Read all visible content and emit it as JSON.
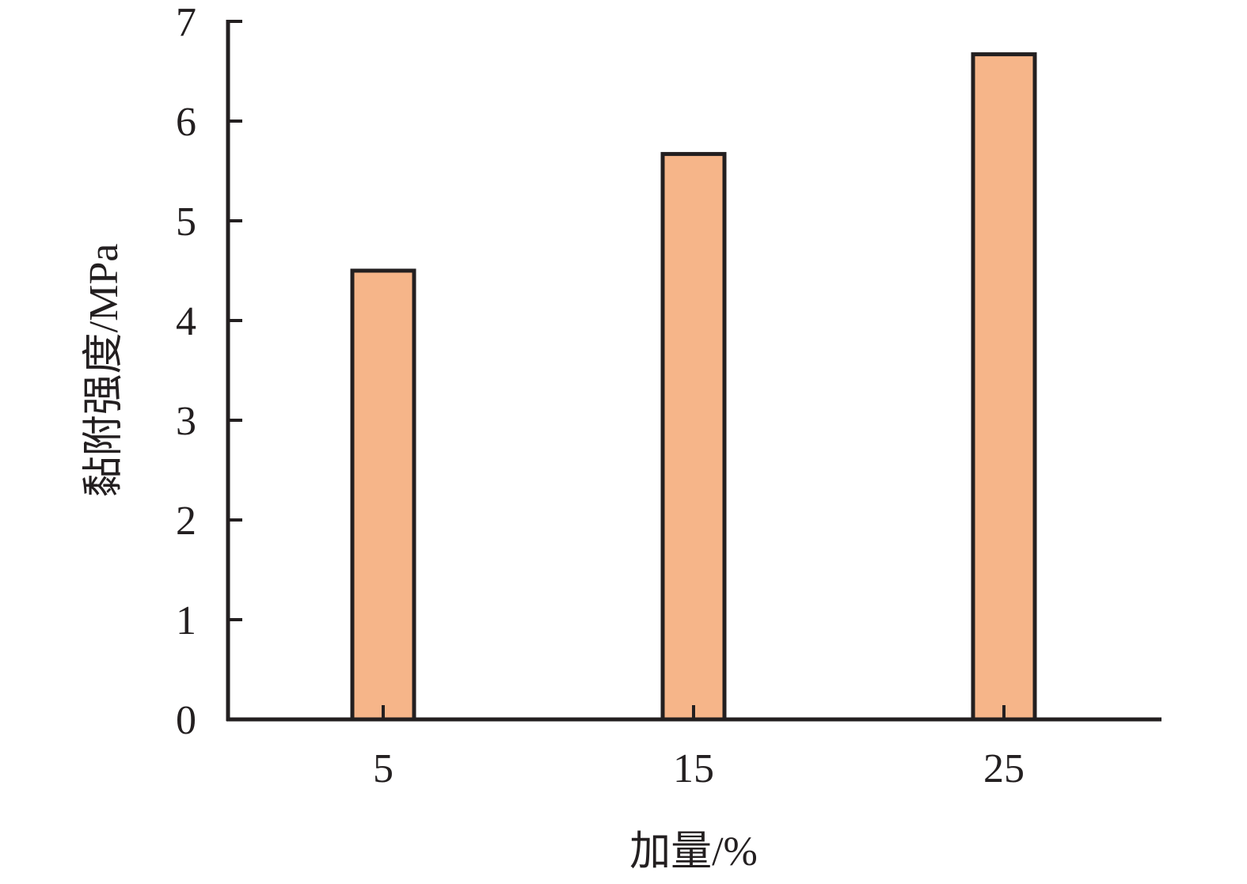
{
  "chart_data": {
    "type": "bar",
    "categories": [
      "5",
      "15",
      "25"
    ],
    "values": [
      4.5,
      5.67,
      6.67
    ],
    "title": "",
    "xlabel": "加量/%",
    "ylabel": "黏附强度/MPa",
    "ylim": [
      0,
      7
    ],
    "yticks": [
      "0",
      "1",
      "2",
      "3",
      "4",
      "5",
      "6",
      "7"
    ],
    "grid": false,
    "legend": "none",
    "colors": {
      "bar_fill": "#f6b589",
      "bar_stroke": "#231f20",
      "axis": "#231f20"
    }
  }
}
